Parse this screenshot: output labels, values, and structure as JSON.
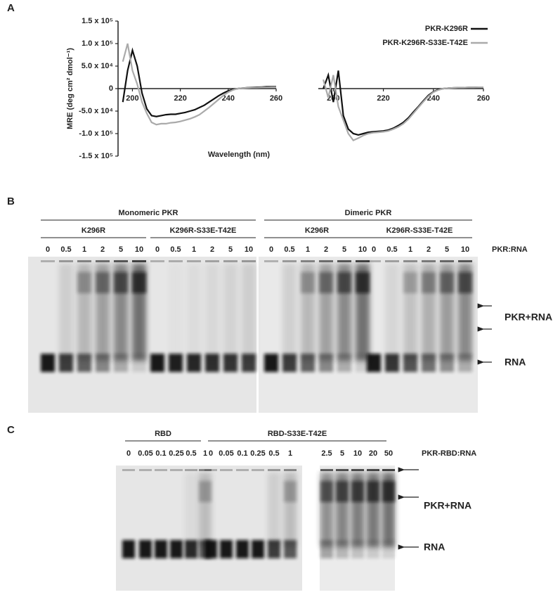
{
  "panel_a": {
    "label": "A"
  },
  "chart_data": [
    {
      "type": "line",
      "x_label": "Wavelength (nm)",
      "y_label": "MRE (deg cm² dmol⁻¹)",
      "x": [
        196,
        198,
        200,
        202,
        204,
        206,
        208,
        210,
        212,
        214,
        216,
        218,
        220,
        222,
        224,
        226,
        228,
        230,
        232,
        234,
        236,
        238,
        240,
        242,
        244,
        246,
        248,
        250,
        252,
        254,
        256,
        258,
        260
      ],
      "series": [
        {
          "color": "#111111",
          "values": [
            -30000,
            40000,
            85000,
            50000,
            -10000,
            -45000,
            -60000,
            -62000,
            -60000,
            -58000,
            -57000,
            -57000,
            -55000,
            -53000,
            -50000,
            -47000,
            -42000,
            -37000,
            -30000,
            -23000,
            -16000,
            -10000,
            -5000,
            -2000,
            0,
            1000,
            2000,
            2500,
            3000,
            3500,
            4000,
            4000,
            4000
          ]
        },
        {
          "color": "#aaaaaa",
          "values": [
            60000,
            100000,
            40000,
            10000,
            -30000,
            -55000,
            -75000,
            -80000,
            -78000,
            -78000,
            -76000,
            -75000,
            -73000,
            -70000,
            -67000,
            -63000,
            -58000,
            -50000,
            -42000,
            -33000,
            -24000,
            -15000,
            -8000,
            -3000,
            0,
            1000,
            1500,
            2000,
            2000,
            2500,
            2500,
            3000,
            3000
          ]
        }
      ],
      "xlim": [
        194,
        260
      ],
      "xticks": [
        200,
        220,
        240,
        260
      ],
      "ylim": [
        -150000,
        150000
      ],
      "yticks": [
        {
          "value": 150000,
          "label": "1.5 x 10⁵"
        },
        {
          "value": 100000,
          "label": "1.0 x 10⁵"
        },
        {
          "value": 50000,
          "label": "5.0 x 10⁴"
        },
        0,
        {
          "value": -50000,
          "label": "-5.0 x 10⁴"
        },
        {
          "value": -100000,
          "label": "-1.0 x 10⁵"
        },
        {
          "value": -150000,
          "label": "-1.5 x 10⁵"
        }
      ]
    },
    {
      "type": "line",
      "x": [
        196,
        198,
        200,
        202,
        204,
        206,
        208,
        210,
        212,
        214,
        216,
        218,
        220,
        222,
        224,
        226,
        228,
        230,
        232,
        234,
        236,
        238,
        240,
        242,
        244,
        246,
        248,
        250,
        252,
        254,
        256,
        258,
        260
      ],
      "series": [
        {
          "name": "PKR-K296R",
          "color": "#111111",
          "values": [
            0,
            30000,
            -30000,
            40000,
            -60000,
            -90000,
            -100000,
            -103000,
            -100000,
            -97000,
            -96000,
            -95000,
            -94000,
            -92000,
            -88000,
            -82000,
            -75000,
            -65000,
            -52000,
            -40000,
            -27000,
            -15000,
            -7000,
            -2000,
            0,
            1000,
            1500,
            2000,
            2000,
            2500,
            2500,
            3000,
            3000
          ]
        },
        {
          "name": "PKR-K296R-S33E-T42E",
          "color": "#aaaaaa",
          "values": [
            20000,
            -20000,
            30000,
            -40000,
            -70000,
            -100000,
            -115000,
            -110000,
            -104000,
            -100000,
            -98000,
            -97000,
            -96000,
            -94000,
            -90000,
            -85000,
            -78000,
            -68000,
            -55000,
            -42000,
            -29000,
            -17000,
            -8000,
            -3000,
            0,
            1000,
            1500,
            2000,
            2000,
            2500,
            2500,
            3000,
            3000
          ]
        }
      ],
      "xlim": [
        194,
        260
      ],
      "xticks": [
        200,
        220,
        240,
        260
      ],
      "ylim": [
        -150000,
        150000
      ],
      "legend": "upper right"
    }
  ],
  "panel_b": {
    "label": "B",
    "groups": [
      {
        "title": "Monomeric PKR",
        "subgroups": [
          {
            "label": "K296R",
            "lanes": [
              "0",
              "0.5",
              "1",
              "2",
              "5",
              "10"
            ]
          },
          {
            "label": "K296R-S33E-T42E",
            "lanes": [
              "0",
              "0.5",
              "1",
              "2",
              "5",
              "10"
            ]
          }
        ]
      },
      {
        "title": "Dimeric PKR",
        "subgroups": [
          {
            "label": "K296R",
            "lanes": [
              "0",
              "0.5",
              "1",
              "2",
              "5",
              "10"
            ]
          },
          {
            "label": "K296R-S33E-T42E",
            "lanes": [
              "0",
              "0.5",
              "1",
              "2",
              "5",
              "10"
            ]
          }
        ]
      }
    ],
    "ratio_label": "PKR:RNA",
    "complex_label": "PKR+RNA",
    "free_label": "RNA"
  },
  "panel_c": {
    "label": "C",
    "groups": [
      {
        "label": "RBD",
        "lanes": [
          "0",
          "0.05",
          "0.1",
          "0.25",
          "0.5",
          "1"
        ]
      },
      {
        "label": "RBD-S33E-T42E",
        "lanes": [
          "0",
          "0.05",
          "0.1",
          "0.25",
          "0.5",
          "1",
          "2.5",
          "5",
          "10",
          "20",
          "50"
        ]
      }
    ],
    "ratio_label": "PKR-RBD:RNA",
    "complex_label": "PKR+RNA",
    "free_label": "RNA"
  }
}
